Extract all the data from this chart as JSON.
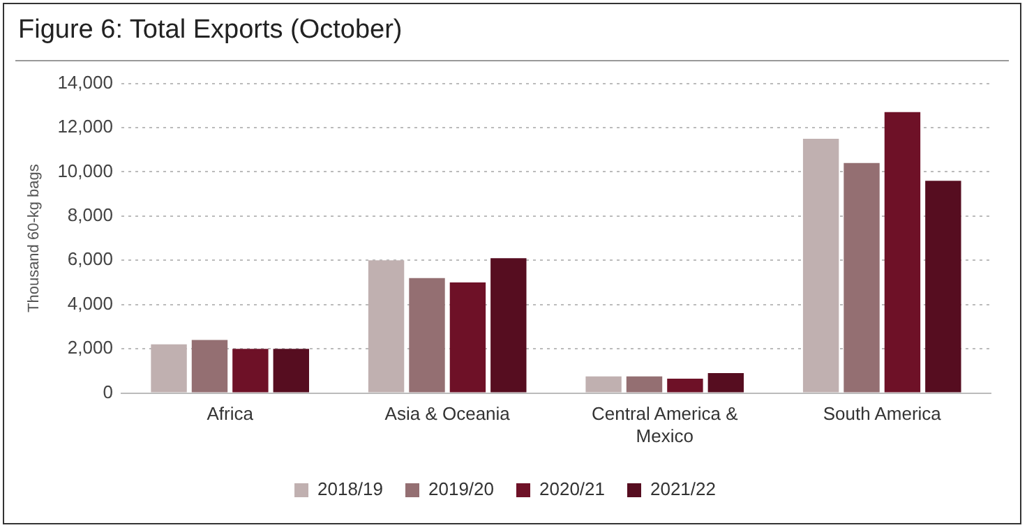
{
  "chart_data": {
    "type": "bar",
    "title": "Figure 6: Total Exports (October)",
    "ylabel": "Thousand 60-kg bags",
    "categories": [
      "Africa",
      "Asia & Oceania",
      "Central America & Mexico",
      "South America"
    ],
    "series": [
      {
        "name": "2018/19",
        "color": "#c0b0b0",
        "values": [
          2200,
          6000,
          750,
          11500
        ]
      },
      {
        "name": "2019/20",
        "color": "#946f72",
        "values": [
          2400,
          5200,
          750,
          10400
        ]
      },
      {
        "name": "2020/21",
        "color": "#6e1127",
        "values": [
          2000,
          5000,
          650,
          12700
        ]
      },
      {
        "name": "2021/22",
        "color": "#560d20",
        "values": [
          2000,
          6100,
          900,
          9600
        ]
      }
    ],
    "ylim": [
      0,
      14000
    ],
    "yticks": [
      0,
      {
        "value": 2000,
        "label": "2,000"
      },
      {
        "value": 4000,
        "label": "4,000"
      },
      {
        "value": 6000,
        "label": "6,000"
      },
      {
        "value": 8000,
        "label": "8,000"
      },
      {
        "value": 10000,
        "label": "10,000"
      },
      {
        "value": 12000,
        "label": "12,000"
      },
      {
        "value": 14000,
        "label": "14,000"
      }
    ],
    "grid": "y",
    "legend": "bottom"
  }
}
